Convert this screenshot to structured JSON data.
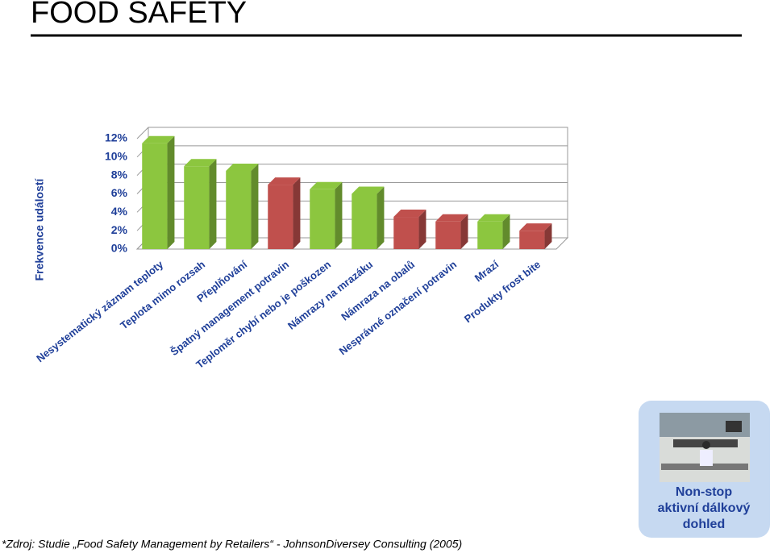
{
  "header": {
    "title": "FOOD SAFETY"
  },
  "chart_data": {
    "type": "bar3d",
    "y_label": "Frekvence událostí",
    "categories": [
      "Nesystematický záznam teploty",
      "Teplota mimo rozsah",
      "Přeplňování",
      "Špatný management potravin",
      "Teploměr chybí nebo je poškozen",
      "Námrazy na mrazáku",
      "Námraza na obalů",
      "Nesprávné označení potravin",
      "Mrazí",
      "Produkty frost bite"
    ],
    "values": [
      11.5,
      9,
      8.5,
      7,
      6.5,
      6,
      3.5,
      3,
      3,
      2
    ],
    "colors": [
      "#8cc63f",
      "#8cc63f",
      "#8cc63f",
      "#c0504d",
      "#8cc63f",
      "#8cc63f",
      "#c0504d",
      "#c0504d",
      "#8cc63f",
      "#c0504d"
    ],
    "ylim": [
      0,
      12
    ],
    "yticks": [
      {
        "value": 0,
        "label": "0%"
      },
      {
        "value": 2,
        "label": "2%"
      },
      {
        "value": 4,
        "label": "4%"
      },
      {
        "value": 6,
        "label": "6%"
      },
      {
        "value": 8,
        "label": "8%"
      },
      {
        "value": 10,
        "label": "10%"
      },
      {
        "value": 12,
        "label": "12%"
      }
    ],
    "grid": true
  },
  "card": {
    "lines": [
      "Non-stop",
      "aktivní dálkový",
      "dohled"
    ]
  },
  "footer": {
    "note": "*Zdroj: Studie „Food Safety Management by Retailers“ - JohnsonDiversey Consulting (2005)"
  }
}
